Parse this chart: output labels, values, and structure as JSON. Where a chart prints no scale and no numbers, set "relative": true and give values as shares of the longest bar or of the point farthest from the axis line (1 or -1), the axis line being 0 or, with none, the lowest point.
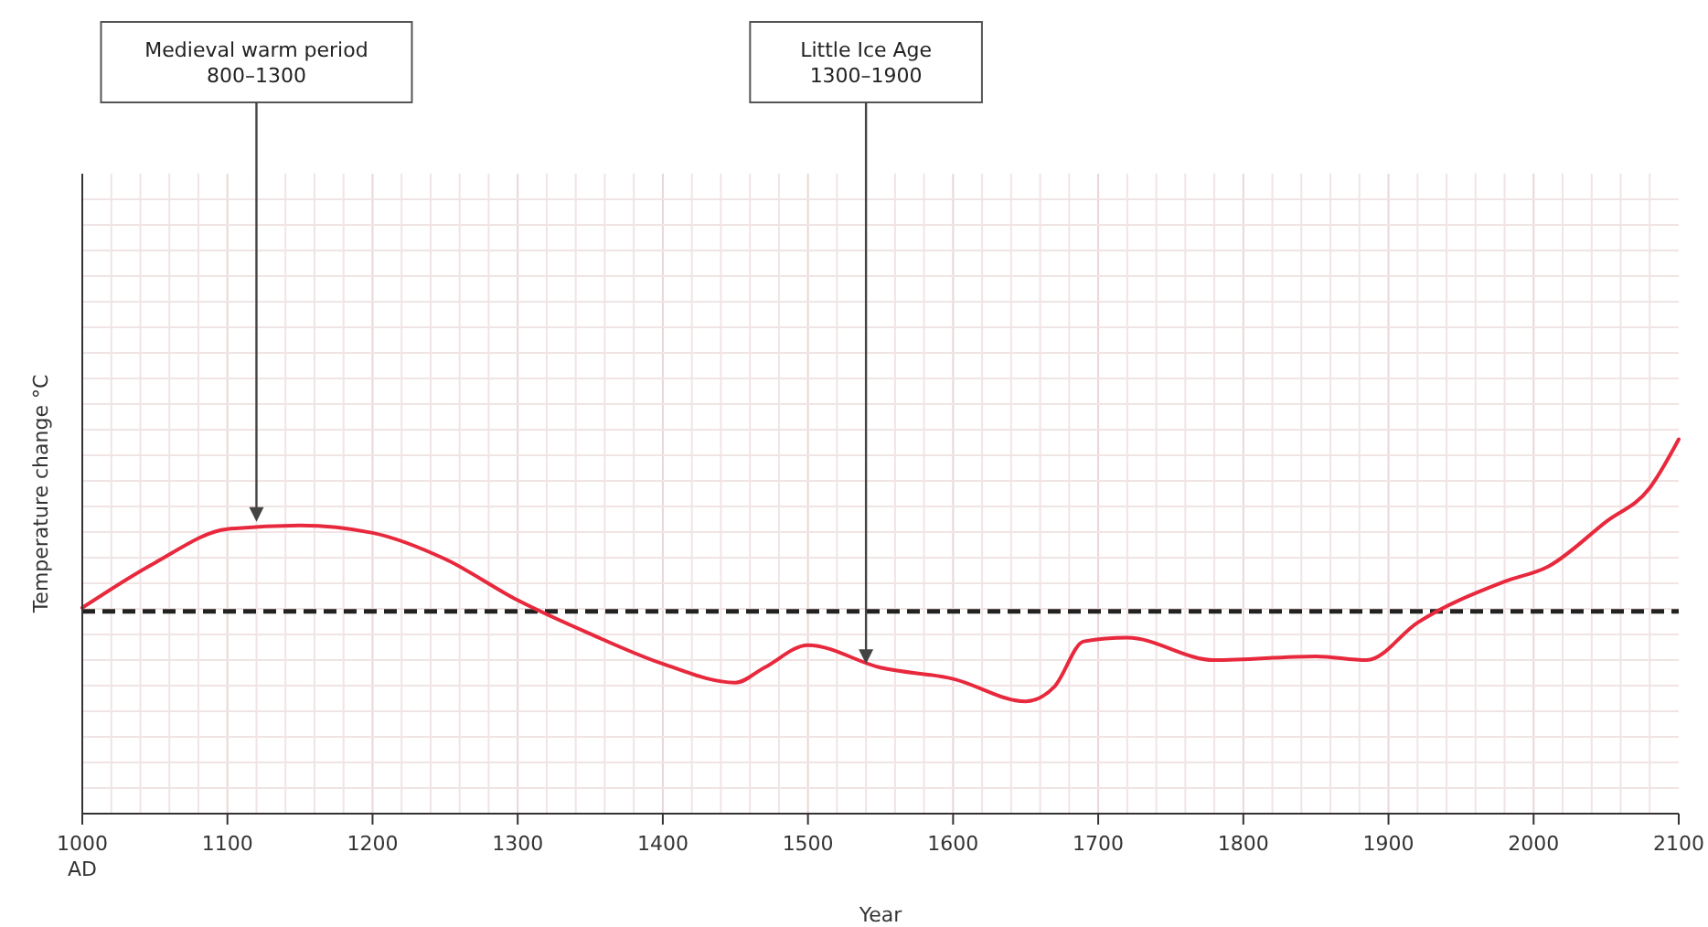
{
  "chart_data": {
    "type": "line",
    "relative": true,
    "xlabel": "Year",
    "ylabel": "Temperature change °C",
    "x": [
      1000,
      1050,
      1100,
      1150,
      1200,
      1250,
      1300,
      1350,
      1400,
      1450,
      1470,
      1500,
      1550,
      1600,
      1650,
      1670,
      1690,
      1720,
      1780,
      1850,
      1885,
      1920,
      1980,
      2010,
      2050,
      2080,
      2100
    ],
    "series": [
      {
        "color": "#e8283c",
        "values": [
          0.55,
          0.67,
          0.76,
          0.77,
          0.75,
          0.68,
          0.57,
          0.48,
          0.4,
          0.35,
          0.39,
          0.45,
          0.39,
          0.36,
          0.3,
          0.34,
          0.46,
          0.47,
          0.41,
          0.42,
          0.41,
          0.51,
          0.62,
          0.66,
          0.78,
          0.87,
          1
        ]
      }
    ],
    "xlim": [
      1000,
      2100
    ],
    "xticks": [
      {
        "value": 1000,
        "label": "1000\nAD"
      },
      1100,
      1200,
      1300,
      1400,
      1500,
      1600,
      1700,
      1800,
      1900,
      2000,
      2100
    ],
    "grid": true,
    "marker": "none",
    "line_style": "solid",
    "ref_lines": [
      {
        "axis": "y",
        "value": 0.54,
        "color": "#222222",
        "line_style": "dashed"
      }
    ],
    "annotations": [
      {
        "text": "Medieval warm period\n800–1300",
        "x": 1120,
        "y": 0.77
      },
      {
        "text": "Little Ice Age\n1300–1900",
        "x": 1540,
        "y": 0.39
      }
    ]
  }
}
